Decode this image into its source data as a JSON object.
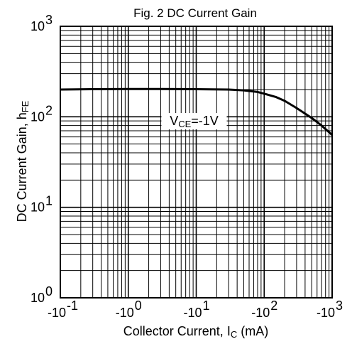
{
  "chart_data": {
    "type": "line",
    "title": "Fig. 2 DC Current Gain",
    "xlabel": {
      "main": "Collector Current, I",
      "sub": "C",
      "unit": " (mA)"
    },
    "ylabel": {
      "main": "DC Current Gain, h",
      "sub": "FE"
    },
    "x_scale": "log",
    "y_scale": "log",
    "xlim": [
      -0.1,
      -1000
    ],
    "ylim": [
      1,
      1000
    ],
    "grid": true,
    "x_ticks": [
      {
        "value": -0.1,
        "base": "-10",
        "exp": "-1"
      },
      {
        "value": -1,
        "base": "-10",
        "exp": "0"
      },
      {
        "value": -10,
        "base": "-10",
        "exp": "1"
      },
      {
        "value": -100,
        "base": "-10",
        "exp": "2"
      },
      {
        "value": -1000,
        "base": "-10",
        "exp": "3"
      }
    ],
    "y_ticks": [
      {
        "value": 1,
        "base": "10",
        "exp": "0"
      },
      {
        "value": 10,
        "base": "10",
        "exp": "1"
      },
      {
        "value": 100,
        "base": "10",
        "exp": "2"
      },
      {
        "value": 1000,
        "base": "10",
        "exp": "3"
      }
    ],
    "series": [
      {
        "label": {
          "main": "V",
          "sub": "CE",
          "rest": "=-1V"
        },
        "x": [
          -0.1,
          -0.3,
          -1,
          -3,
          -10,
          -30,
          -50,
          -80,
          -100,
          -150,
          -200,
          -300,
          -500,
          -700,
          -1000
        ],
        "y": [
          200,
          202,
          203,
          203,
          202,
          200,
          196,
          188,
          180,
          165,
          150,
          125,
          97,
          80,
          63
        ]
      }
    ]
  }
}
